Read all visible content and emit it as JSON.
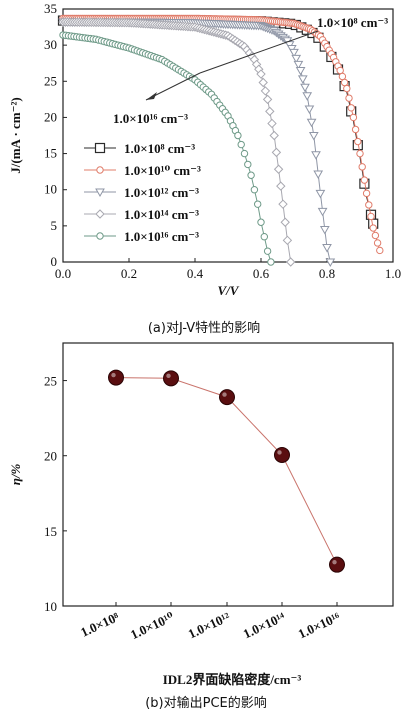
{
  "chart_data": [
    {
      "type": "line",
      "caption": "(a)对J-V特性的影响",
      "xlabel": "V/V",
      "ylabel": "J/(mA · cm⁻²)",
      "xlim": [
        0,
        1.0
      ],
      "ylim": [
        0,
        35
      ],
      "x_ticks": [
        "0.0",
        "0.2",
        "0.4",
        "0.6",
        "0.8",
        "1.0"
      ],
      "y_ticks": [
        "0",
        "5",
        "10",
        "15",
        "20",
        "25",
        "30",
        "35"
      ],
      "legend_position": "lower-left",
      "annotations": [
        "1.0×10⁸ cm⁻³",
        "1.0×10¹⁶ cm⁻³"
      ],
      "series": [
        {
          "name": "1.0×10⁸ cm⁻³",
          "marker": "square",
          "color": "#2b2b2b",
          "x": [
            0.0,
            0.2,
            0.4,
            0.6,
            0.7,
            0.75,
            0.78,
            0.8,
            0.82,
            0.84,
            0.86,
            0.88,
            0.9,
            0.92,
            0.94
          ],
          "y": [
            33.4,
            33.4,
            33.4,
            33.3,
            32.9,
            31.9,
            30.8,
            29.3,
            27.9,
            26.0,
            23.5,
            19.5,
            14.5,
            9.0,
            5.3
          ]
        },
        {
          "name": "1.0×10¹⁰ cm⁻³",
          "marker": "circle",
          "color": "#e07c6a",
          "x": [
            0.0,
            0.2,
            0.4,
            0.6,
            0.7,
            0.75,
            0.78,
            0.8,
            0.82,
            0.84,
            0.86,
            0.88,
            0.9,
            0.92,
            0.94,
            0.96
          ],
          "y": [
            33.7,
            33.7,
            33.7,
            33.5,
            33.0,
            32.2,
            31.2,
            29.8,
            28.3,
            26.5,
            24.0,
            20.0,
            15.0,
            9.5,
            4.7,
            1.6
          ]
        },
        {
          "name": "1.0×10¹² cm⁻³",
          "marker": "triangle-down",
          "color": "#8f96a6",
          "x": [
            0.0,
            0.2,
            0.4,
            0.6,
            0.64,
            0.68,
            0.7,
            0.72,
            0.74,
            0.76,
            0.78,
            0.8,
            0.81
          ],
          "y": [
            33.2,
            33.2,
            33.1,
            32.7,
            32.0,
            30.6,
            29.0,
            26.5,
            23.0,
            17.5,
            9.5,
            2.0,
            0.0
          ]
        },
        {
          "name": "1.0×10¹⁴ cm⁻³",
          "marker": "diamond",
          "color": "#a8a8b0",
          "x": [
            0.0,
            0.2,
            0.4,
            0.5,
            0.55,
            0.58,
            0.6,
            0.62,
            0.64,
            0.66,
            0.68,
            0.69
          ],
          "y": [
            33.2,
            33.1,
            32.5,
            31.3,
            29.8,
            28.0,
            26.0,
            22.5,
            17.5,
            10.5,
            3.0,
            0.0
          ]
        },
        {
          "name": "1.0×10¹⁶ cm⁻³",
          "marker": "circle",
          "color": "#6e9a88",
          "x": [
            0.0,
            0.1,
            0.2,
            0.3,
            0.4,
            0.45,
            0.5,
            0.53,
            0.55,
            0.57,
            0.59,
            0.6,
            0.62,
            0.63
          ],
          "y": [
            31.4,
            30.8,
            29.6,
            28.0,
            25.2,
            23.2,
            20.2,
            17.5,
            15.0,
            12.0,
            8.0,
            5.5,
            1.5,
            0.0
          ]
        }
      ]
    },
    {
      "type": "line",
      "caption": "(b)对输出PCE的影响",
      "xlabel": "IDL2界面缺陷密度/cm⁻³",
      "ylabel": "η/%",
      "categories": [
        "1.0×10⁸",
        "1.0×10¹⁰",
        "1.0×10¹²",
        "1.0×10¹⁴",
        "1.0×10¹⁶"
      ],
      "values": [
        25.2,
        25.15,
        23.9,
        20.05,
        12.75
      ],
      "ylim": [
        10,
        27.5
      ],
      "y_ticks": [
        "10",
        "15",
        "20",
        "25"
      ],
      "colors": {
        "line": "#c9736b",
        "marker": "#5a0e10"
      }
    }
  ]
}
